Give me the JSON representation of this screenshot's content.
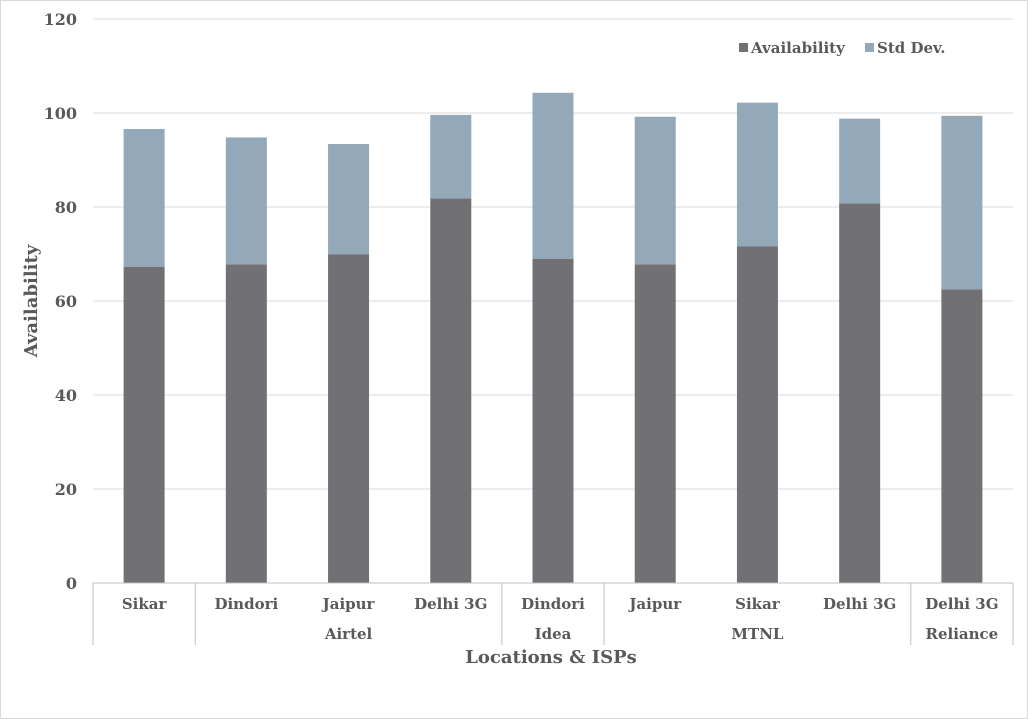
{
  "chart_data": {
    "type": "bar",
    "stacked": true,
    "categories": [
      "Sikar",
      "Dindori",
      "Jaipur",
      "Delhi 3G",
      "Dindori",
      "Jaipur",
      "Sikar",
      "Delhi 3G",
      "Delhi 3G"
    ],
    "groups": [
      {
        "label": "",
        "start": 0,
        "end": 0
      },
      {
        "label": "Airtel",
        "start": 1,
        "end": 3
      },
      {
        "label": "Idea",
        "start": 4,
        "end": 4
      },
      {
        "label": "MTNL",
        "start": 5,
        "end": 7
      },
      {
        "label": "Reliance",
        "start": 8,
        "end": 8
      }
    ],
    "series": [
      {
        "name": "Availability",
        "color": "#717075",
        "values": [
          67.3,
          67.8,
          69.9,
          81.8,
          69.0,
          67.8,
          71.6,
          80.8,
          62.5
        ]
      },
      {
        "name": "Std Dev.",
        "color": "#93a8b8",
        "values": [
          29.3,
          27.0,
          23.5,
          17.8,
          35.3,
          31.4,
          30.6,
          18.0,
          36.9
        ]
      }
    ],
    "title": "",
    "xlabel": "Locations & ISPs",
    "ylabel": "Availability",
    "ylim": [
      0,
      120
    ],
    "yticks": [
      0,
      20,
      40,
      60,
      80,
      100,
      120
    ],
    "grid": true,
    "legend_position": "top-right"
  }
}
